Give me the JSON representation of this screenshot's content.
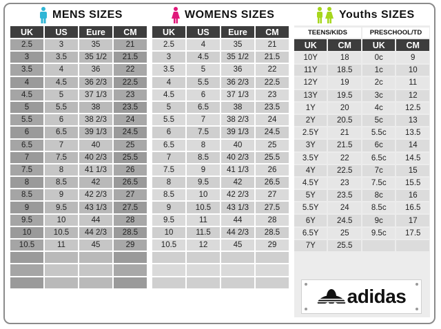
{
  "mens": {
    "title": "MENS  SIZES",
    "headers": [
      "UK",
      "US",
      "Eure",
      "CM"
    ],
    "rows": [
      [
        "2.5",
        "3",
        "35",
        "21"
      ],
      [
        "3",
        "3.5",
        "35 1/2",
        "21.5"
      ],
      [
        "3.5",
        "4",
        "36",
        "22"
      ],
      [
        "4",
        "4.5",
        "36 2/3",
        "22.5"
      ],
      [
        "4.5",
        "5",
        "37 1/3",
        "23"
      ],
      [
        "5",
        "5.5",
        "38",
        "23.5"
      ],
      [
        "5.5",
        "6",
        "38 2/3",
        "24"
      ],
      [
        "6",
        "6.5",
        "39 1/3",
        "24.5"
      ],
      [
        "6.5",
        "7",
        "40",
        "25"
      ],
      [
        "7",
        "7.5",
        "40 2/3",
        "25.5"
      ],
      [
        "7.5",
        "8",
        "41 1/3",
        "26"
      ],
      [
        "8",
        "8.5",
        "42",
        "26.5"
      ],
      [
        "8.5",
        "9",
        "42 2/3",
        "27"
      ],
      [
        "9",
        "9.5",
        "43 1/3",
        "27.5"
      ],
      [
        "9.5",
        "10",
        "44",
        "28"
      ],
      [
        "10",
        "10.5",
        "44 2/3",
        "28.5"
      ],
      [
        "10.5",
        "11",
        "45",
        "29"
      ],
      [
        "",
        "",
        "",
        ""
      ],
      [
        "",
        "",
        "",
        ""
      ],
      [
        "",
        "",
        "",
        ""
      ]
    ],
    "icon_color": "#2fb6d6"
  },
  "womens": {
    "title": "WOMENS  SIZES",
    "headers": [
      "UK",
      "US",
      "Eure",
      "CM"
    ],
    "rows": [
      [
        "2.5",
        "4",
        "35",
        "21"
      ],
      [
        "3",
        "4.5",
        "35 1/2",
        "21.5"
      ],
      [
        "3.5",
        "5",
        "36",
        "22"
      ],
      [
        "4",
        "5.5",
        "36 2/3",
        "22.5"
      ],
      [
        "4.5",
        "6",
        "37  1/3",
        "23"
      ],
      [
        "5",
        "6.5",
        "38",
        "23.5"
      ],
      [
        "5.5",
        "7",
        "38 2/3",
        "24"
      ],
      [
        "6",
        "7.5",
        "39 1/3",
        "24.5"
      ],
      [
        "6.5",
        "8",
        "40",
        "25"
      ],
      [
        "7",
        "8.5",
        "40 2/3",
        "25.5"
      ],
      [
        "7.5",
        "9",
        "41 1/3",
        "26"
      ],
      [
        "8",
        "9.5",
        "42",
        "26.5"
      ],
      [
        "8.5",
        "10",
        "42 2/3",
        "27"
      ],
      [
        "9",
        "10.5",
        "43 1/3",
        "27.5"
      ],
      [
        "9.5",
        "11",
        "44",
        "28"
      ],
      [
        "10",
        "11.5",
        "44 2/3",
        "28.5"
      ],
      [
        "10.5",
        "12",
        "45",
        "29"
      ],
      [
        "",
        "",
        "",
        ""
      ],
      [
        "",
        "",
        "",
        ""
      ],
      [
        "",
        "",
        "",
        ""
      ]
    ],
    "icon_color": "#e0187a"
  },
  "youths": {
    "title": "Youths  SIZES",
    "groups": [
      "TEENS/KIDS",
      "PRESCHOOL/TD"
    ],
    "headers": [
      "UK",
      "CM",
      "UK",
      "CM"
    ],
    "rows": [
      [
        "10Y",
        "18",
        "0c",
        "9"
      ],
      [
        "11Y",
        "18.5",
        "1c",
        "10"
      ],
      [
        "12Y",
        "19",
        "2c",
        "11"
      ],
      [
        "13Y",
        "19.5",
        "3c",
        "12"
      ],
      [
        "1Y",
        "20",
        "4c",
        "12.5"
      ],
      [
        "2Y",
        "20.5",
        "5c",
        "13"
      ],
      [
        "2.5Y",
        "21",
        "5.5c",
        "13.5"
      ],
      [
        "3Y",
        "21.5",
        "6c",
        "14"
      ],
      [
        "3.5Y",
        "22",
        "6.5c",
        "14.5"
      ],
      [
        "4Y",
        "22.5",
        "7c",
        "15"
      ],
      [
        "4.5Y",
        "23",
        "7.5c",
        "15.5"
      ],
      [
        "5Y",
        "23.5",
        "8c",
        "16"
      ],
      [
        "5.5Y",
        "24",
        "8.5c",
        "16.5"
      ],
      [
        "6Y",
        "24.5",
        "9c",
        "17"
      ],
      [
        "6.5Y",
        "25",
        "9.5c",
        "17.5"
      ],
      [
        "7Y",
        "25.5",
        "",
        ""
      ]
    ],
    "icon_color": "#a6d61c"
  },
  "logo": {
    "text": "adidas"
  }
}
